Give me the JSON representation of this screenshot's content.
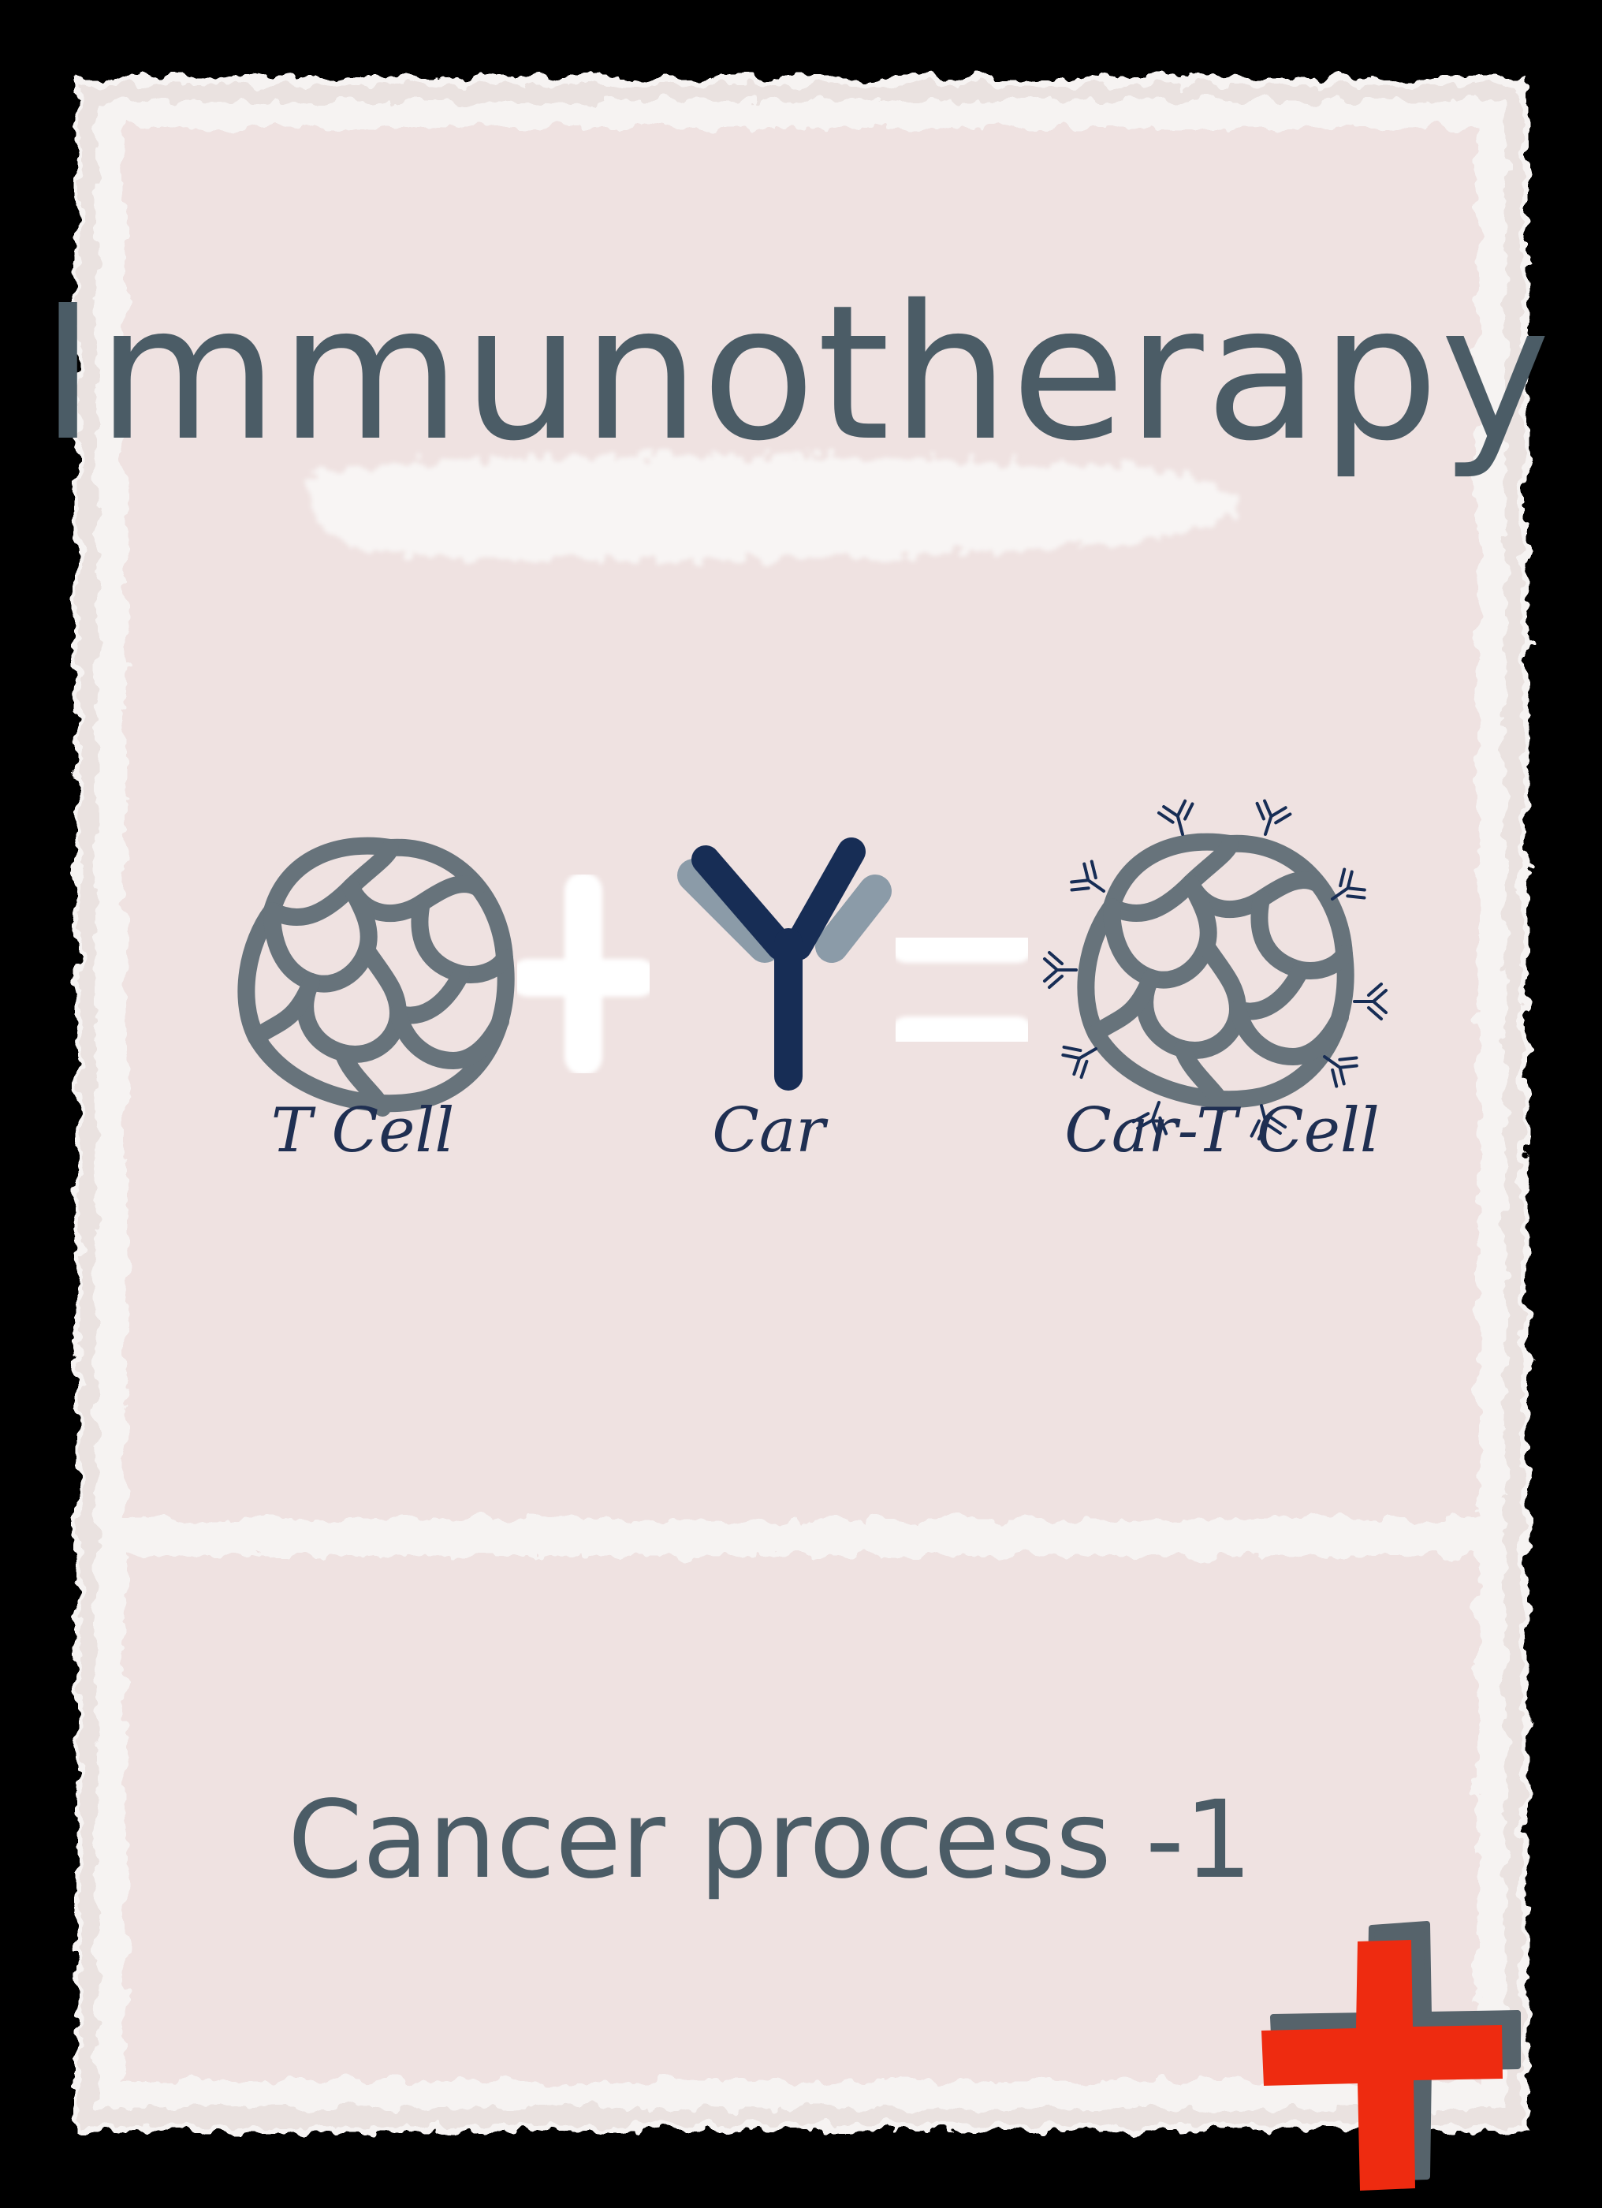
{
  "card": {
    "title": "Immunotherapy",
    "footer": "Cancer process -1",
    "equation": {
      "plus_symbol": "+",
      "equals_symbol": "=",
      "labels": {
        "t_cell": "T Cell",
        "car": "Car",
        "car_t_cell": "Car-T Cell"
      }
    }
  },
  "colors": {
    "background": "#000000",
    "card_fill": "#efe2e1",
    "frame": "#f6f3f2",
    "text": "#4b5c66",
    "cell_outline": "#67737b",
    "antibody_dark": "#172d55",
    "antibody_light": "#8b9ba8",
    "label_ink": "#1f2f52",
    "cross_red": "#ee2b10",
    "cross_shadow": "#56636b"
  }
}
